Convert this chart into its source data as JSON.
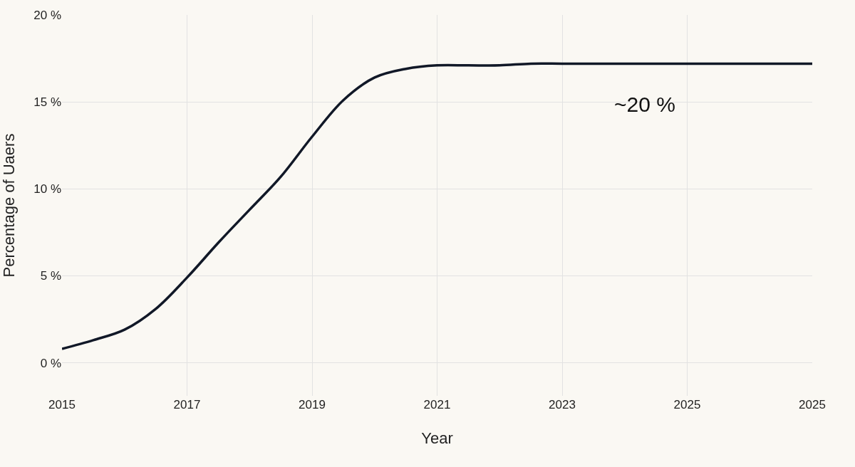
{
  "chart_data": {
    "type": "line",
    "xlabel": "Year",
    "ylabel": "Percentage of Uaers",
    "categories": [
      "2015",
      null,
      null,
      null,
      "2017",
      null,
      null,
      null,
      "2019",
      null,
      null,
      null,
      "2021",
      null,
      null,
      null,
      "2023",
      null,
      null,
      null,
      "2025",
      null,
      null,
      null,
      "2025"
    ],
    "series": [
      {
        "color": "#111827",
        "values": [
          0.8,
          1.3,
          1.9,
          3.1,
          4.9,
          6.9,
          8.8,
          10.7,
          13.0,
          15.1,
          16.4,
          16.9,
          17.1,
          17.1,
          17.1,
          17.2,
          17.2,
          17.2,
          17.2,
          17.2,
          17.2,
          17.2,
          17.2,
          17.2,
          17.2
        ]
      }
    ],
    "ylim": [
      -1.9,
      20
    ],
    "yticks": [
      {
        "value": 0,
        "label": "0 %"
      },
      {
        "value": 5,
        "label": "5 %"
      },
      {
        "value": 10,
        "label": "10 %"
      },
      {
        "value": 15,
        "label": "15 %"
      },
      {
        "value": 20,
        "label": "20 %"
      }
    ],
    "grid": true,
    "legend": false,
    "marker": "none",
    "line_style": "solid",
    "annotations": [
      "~20 %"
    ]
  }
}
